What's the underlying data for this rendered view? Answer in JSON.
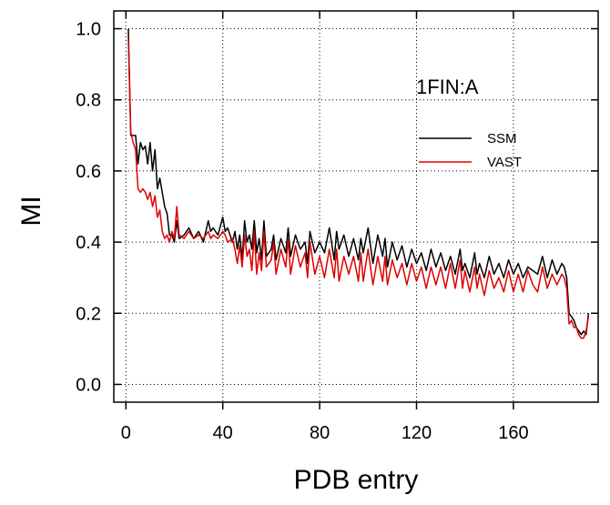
{
  "chart_data": {
    "type": "line",
    "title": "",
    "annotation": "1FIN:A",
    "xlabel": "PDB entry",
    "ylabel": "MI",
    "xlim": [
      -5,
      195
    ],
    "ylim": [
      -0.05,
      1.05
    ],
    "xticks": [
      0,
      40,
      80,
      120,
      160
    ],
    "yticks": [
      0.0,
      0.2,
      0.4,
      0.6,
      0.8,
      1.0
    ],
    "xtick_labels": [
      "0",
      "40",
      "80",
      "120",
      "160"
    ],
    "ytick_labels": [
      "0.0",
      "0.2",
      "0.4",
      "0.6",
      "0.8",
      "1.0"
    ],
    "grid": true,
    "legend_position": "upper-right",
    "series": [
      {
        "name": "SSM",
        "color": "#000000",
        "x": [
          1,
          2,
          3,
          4,
          5,
          6,
          7,
          8,
          9,
          10,
          11,
          12,
          13,
          14,
          15,
          16,
          17,
          18,
          19,
          20,
          21,
          22,
          24,
          26,
          28,
          30,
          32,
          34,
          35,
          36,
          38,
          40,
          41,
          42,
          44,
          45,
          46,
          47,
          48,
          49,
          50,
          51,
          52,
          53,
          54,
          55,
          56,
          57,
          58,
          60,
          61,
          62,
          64,
          66,
          67,
          68,
          70,
          72,
          74,
          75,
          76,
          78,
          80,
          82,
          84,
          86,
          87,
          88,
          90,
          92,
          94,
          96,
          97,
          98,
          100,
          102,
          104,
          106,
          107,
          108,
          110,
          112,
          114,
          116,
          118,
          120,
          122,
          124,
          126,
          128,
          130,
          132,
          134,
          136,
          138,
          139,
          140,
          142,
          144,
          145,
          146,
          148,
          150,
          152,
          154,
          156,
          158,
          160,
          162,
          164,
          166,
          168,
          170,
          172,
          174,
          176,
          178,
          180,
          181,
          182,
          183,
          184,
          185,
          186,
          187,
          188,
          189,
          190,
          191
        ],
        "values": [
          1.0,
          0.7,
          0.7,
          0.7,
          0.62,
          0.68,
          0.66,
          0.67,
          0.62,
          0.68,
          0.6,
          0.66,
          0.55,
          0.58,
          0.54,
          0.5,
          0.48,
          0.42,
          0.42,
          0.4,
          0.46,
          0.41,
          0.42,
          0.44,
          0.41,
          0.43,
          0.4,
          0.46,
          0.43,
          0.44,
          0.42,
          0.47,
          0.43,
          0.44,
          0.4,
          0.43,
          0.38,
          0.42,
          0.35,
          0.46,
          0.4,
          0.42,
          0.38,
          0.46,
          0.37,
          0.41,
          0.35,
          0.46,
          0.36,
          0.38,
          0.42,
          0.35,
          0.41,
          0.37,
          0.44,
          0.36,
          0.42,
          0.38,
          0.4,
          0.34,
          0.43,
          0.37,
          0.4,
          0.37,
          0.44,
          0.35,
          0.43,
          0.38,
          0.42,
          0.36,
          0.41,
          0.35,
          0.41,
          0.37,
          0.44,
          0.34,
          0.42,
          0.36,
          0.41,
          0.33,
          0.4,
          0.35,
          0.39,
          0.33,
          0.38,
          0.34,
          0.37,
          0.32,
          0.38,
          0.33,
          0.37,
          0.32,
          0.36,
          0.31,
          0.38,
          0.32,
          0.34,
          0.3,
          0.37,
          0.31,
          0.34,
          0.3,
          0.36,
          0.31,
          0.34,
          0.3,
          0.35,
          0.31,
          0.34,
          0.3,
          0.33,
          0.32,
          0.31,
          0.36,
          0.3,
          0.35,
          0.31,
          0.34,
          0.33,
          0.3,
          0.2,
          0.19,
          0.18,
          0.16,
          0.15,
          0.14,
          0.15,
          0.14,
          0.2
        ]
      },
      {
        "name": "VAST",
        "color": "#dd0000",
        "x": [
          1,
          2,
          3,
          4,
          5,
          6,
          7,
          8,
          9,
          10,
          11,
          12,
          13,
          14,
          15,
          16,
          17,
          18,
          19,
          20,
          21,
          22,
          24,
          26,
          28,
          30,
          32,
          34,
          35,
          36,
          38,
          40,
          41,
          42,
          44,
          45,
          46,
          47,
          48,
          49,
          50,
          51,
          52,
          53,
          54,
          55,
          56,
          57,
          58,
          60,
          61,
          62,
          64,
          66,
          67,
          68,
          70,
          72,
          74,
          75,
          76,
          78,
          80,
          82,
          84,
          86,
          87,
          88,
          90,
          92,
          94,
          96,
          97,
          98,
          100,
          102,
          104,
          106,
          107,
          108,
          110,
          112,
          114,
          116,
          118,
          120,
          122,
          124,
          126,
          128,
          130,
          132,
          134,
          136,
          138,
          139,
          140,
          142,
          144,
          145,
          146,
          148,
          150,
          152,
          154,
          156,
          158,
          160,
          162,
          164,
          166,
          168,
          170,
          172,
          174,
          176,
          178,
          180,
          181,
          182,
          183,
          184,
          185,
          186,
          187,
          188,
          189,
          190,
          191
        ],
        "values": [
          0.97,
          0.71,
          0.68,
          0.66,
          0.55,
          0.54,
          0.55,
          0.54,
          0.52,
          0.54,
          0.5,
          0.53,
          0.47,
          0.49,
          0.43,
          0.41,
          0.42,
          0.4,
          0.43,
          0.41,
          0.5,
          0.42,
          0.41,
          0.43,
          0.41,
          0.42,
          0.41,
          0.43,
          0.41,
          0.42,
          0.41,
          0.43,
          0.42,
          0.4,
          0.41,
          0.38,
          0.34,
          0.39,
          0.33,
          0.42,
          0.36,
          0.38,
          0.32,
          0.43,
          0.31,
          0.37,
          0.32,
          0.43,
          0.33,
          0.35,
          0.4,
          0.31,
          0.38,
          0.33,
          0.41,
          0.31,
          0.39,
          0.33,
          0.37,
          0.3,
          0.4,
          0.31,
          0.36,
          0.3,
          0.38,
          0.3,
          0.38,
          0.29,
          0.36,
          0.31,
          0.36,
          0.29,
          0.37,
          0.29,
          0.38,
          0.28,
          0.36,
          0.29,
          0.36,
          0.28,
          0.35,
          0.3,
          0.34,
          0.28,
          0.34,
          0.29,
          0.33,
          0.27,
          0.33,
          0.28,
          0.33,
          0.27,
          0.34,
          0.27,
          0.35,
          0.27,
          0.32,
          0.26,
          0.33,
          0.27,
          0.31,
          0.25,
          0.32,
          0.27,
          0.3,
          0.26,
          0.32,
          0.26,
          0.31,
          0.26,
          0.32,
          0.28,
          0.26,
          0.33,
          0.27,
          0.31,
          0.28,
          0.31,
          0.3,
          0.27,
          0.17,
          0.18,
          0.16,
          0.16,
          0.14,
          0.13,
          0.13,
          0.15,
          0.19
        ]
      }
    ]
  }
}
